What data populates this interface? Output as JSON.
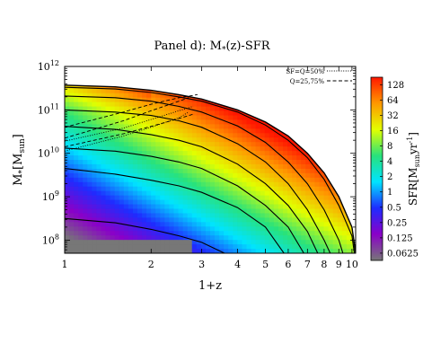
{
  "chart_data": {
    "type": "heatmap",
    "title_main": "Panel d): M",
    "title_sub": "*",
    "title_rest": "(z)-SFR",
    "xlabel": "1+z",
    "ylabel_main": "M",
    "ylabel_sub": "*",
    "ylabel_unit": "[M",
    "ylabel_unit_sub": "sun",
    "ylabel_close": "]",
    "x_scale": "log",
    "y_scale": "log",
    "xlim": [
      1,
      10.3
    ],
    "ylim": [
      50000000,
      1000000000000
    ],
    "x_ticks": [
      {
        "value": 1,
        "label": "1"
      },
      {
        "value": 2,
        "label": "2"
      },
      {
        "value": 3,
        "label": "3"
      },
      {
        "value": 4,
        "label": "4"
      },
      {
        "value": 5,
        "label": "5"
      },
      {
        "value": 6,
        "label": "6"
      },
      {
        "value": 7,
        "label": "7"
      },
      {
        "value": 8,
        "label": "8"
      },
      {
        "value": 9,
        "label": "9"
      },
      {
        "value": 10,
        "label": "10"
      }
    ],
    "y_ticks": [
      {
        "exp": 8,
        "base": "10",
        "sup": "8"
      },
      {
        "exp": 9,
        "base": "10",
        "sup": "9"
      },
      {
        "exp": 10,
        "base": "10",
        "sup": "10"
      },
      {
        "exp": 11,
        "base": "10",
        "sup": "11"
      },
      {
        "exp": 12,
        "base": "10",
        "sup": "12"
      }
    ],
    "colorbar": {
      "label_main": "SFR[M",
      "label_sub": "sun",
      "label_unit": "yr",
      "label_sup": "-1",
      "label_close": "]",
      "scale": "log",
      "range": [
        0.045,
        180
      ],
      "ticks": [
        {
          "value": 128,
          "label": "128"
        },
        {
          "value": 64,
          "label": "64"
        },
        {
          "value": 32,
          "label": "32"
        },
        {
          "value": 16,
          "label": "16"
        },
        {
          "value": 8,
          "label": "8"
        },
        {
          "value": 4,
          "label": "4"
        },
        {
          "value": 2,
          "label": "2"
        },
        {
          "value": 1,
          "label": "1"
        },
        {
          "value": 0.5,
          "label": "0.5"
        },
        {
          "value": 0.25,
          "label": "0.25"
        },
        {
          "value": 0.125,
          "label": "0.125"
        },
        {
          "value": 0.0625,
          "label": "0.0625"
        }
      ],
      "colors": [
        "#777777",
        "#8a00c8",
        "#1e2cff",
        "#00e4ff",
        "#28e27c",
        "#e2ff00",
        "#ff9800",
        "#ff1700"
      ]
    },
    "legend": {
      "placement": "top-right",
      "entries": [
        {
          "label": "SF=Q=50%",
          "style": "dotted"
        },
        {
          "label": "Q=25,75%",
          "style": "dashed"
        }
      ]
    },
    "envelope_log_mass": [
      [
        1,
        11.57
      ],
      [
        1.5,
        11.53
      ],
      [
        2,
        11.45
      ],
      [
        2.5,
        11.35
      ],
      [
        3,
        11.25
      ],
      [
        4,
        11.0
      ],
      [
        5,
        10.72
      ],
      [
        6,
        10.4
      ],
      [
        7,
        10.0
      ],
      [
        8,
        9.55
      ],
      [
        9,
        9.0
      ],
      [
        10,
        8.3
      ],
      [
        10.3,
        7.7
      ]
    ],
    "tracks_log_mass": [
      [
        [
          1,
          11.52
        ],
        [
          1.5,
          11.48
        ],
        [
          2,
          11.4
        ],
        [
          2.5,
          11.3
        ],
        [
          3,
          11.2
        ],
        [
          4,
          10.95
        ],
        [
          5,
          10.65
        ],
        [
          6,
          10.3
        ],
        [
          7,
          9.9
        ],
        [
          8,
          9.4
        ],
        [
          9,
          8.8
        ],
        [
          10,
          8.1
        ],
        [
          10.2,
          7.7
        ]
      ],
      [
        [
          1,
          11.32
        ],
        [
          1.5,
          11.28
        ],
        [
          2,
          11.2
        ],
        [
          2.5,
          11.08
        ],
        [
          3,
          10.95
        ],
        [
          4,
          10.63
        ],
        [
          5,
          10.25
        ],
        [
          6,
          9.8
        ],
        [
          7,
          9.3
        ],
        [
          8,
          8.7
        ],
        [
          9,
          8.0
        ],
        [
          9.3,
          7.7
        ]
      ],
      [
        [
          1,
          11.0
        ],
        [
          1.5,
          10.95
        ],
        [
          2,
          10.87
        ],
        [
          2.5,
          10.75
        ],
        [
          3,
          10.6
        ],
        [
          4,
          10.22
        ],
        [
          5,
          9.8
        ],
        [
          6,
          9.3
        ],
        [
          7,
          8.7
        ],
        [
          8,
          8.0
        ],
        [
          8.4,
          7.7
        ]
      ],
      [
        [
          1,
          10.62
        ],
        [
          1.5,
          10.55
        ],
        [
          2,
          10.43
        ],
        [
          2.5,
          10.3
        ],
        [
          3,
          10.15
        ],
        [
          4,
          9.75
        ],
        [
          5,
          9.3
        ],
        [
          6,
          8.8
        ],
        [
          7,
          8.2
        ],
        [
          7.6,
          7.7
        ]
      ],
      [
        [
          1,
          10.12
        ],
        [
          1.5,
          10.05
        ],
        [
          2,
          9.93
        ],
        [
          2.5,
          9.8
        ],
        [
          3,
          9.65
        ],
        [
          4,
          9.25
        ],
        [
          5,
          8.8
        ],
        [
          6,
          8.3
        ],
        [
          6.8,
          7.7
        ]
      ],
      [
        [
          1,
          9.65
        ],
        [
          1.5,
          9.52
        ],
        [
          2,
          9.38
        ],
        [
          2.5,
          9.25
        ],
        [
          3,
          9.1
        ],
        [
          4,
          8.75
        ],
        [
          5,
          8.3
        ],
        [
          5.8,
          7.7
        ]
      ],
      [
        [
          1,
          8.5
        ],
        [
          1.5,
          8.4
        ],
        [
          2,
          8.25
        ],
        [
          2.5,
          8.1
        ],
        [
          3,
          7.95
        ],
        [
          3.6,
          7.7
        ]
      ]
    ],
    "q50_lines_log_mass": [
      [
        [
          1,
          10.05
        ],
        [
          1.6,
          10.4
        ],
        [
          2,
          10.6
        ],
        [
          2.5,
          10.82
        ],
        [
          2.7,
          10.95
        ]
      ],
      [
        [
          1,
          10.28
        ],
        [
          1.6,
          10.58
        ],
        [
          2,
          10.78
        ],
        [
          2.5,
          10.98
        ],
        [
          2.8,
          11.08
        ]
      ]
    ],
    "q25_75_lines_log_mass": [
      [
        [
          1,
          10.35
        ],
        [
          1.6,
          10.75
        ],
        [
          2,
          10.98
        ],
        [
          2.5,
          11.2
        ],
        [
          2.7,
          11.28
        ]
      ],
      [
        [
          1,
          10.6
        ],
        [
          1.6,
          10.95
        ],
        [
          2,
          11.13
        ],
        [
          2.5,
          11.28
        ],
        [
          2.9,
          11.35
        ]
      ],
      [
        [
          1,
          10.15
        ],
        [
          1.6,
          10.45
        ],
        [
          2,
          10.62
        ],
        [
          2.5,
          10.8
        ],
        [
          2.8,
          10.9
        ]
      ]
    ]
  }
}
